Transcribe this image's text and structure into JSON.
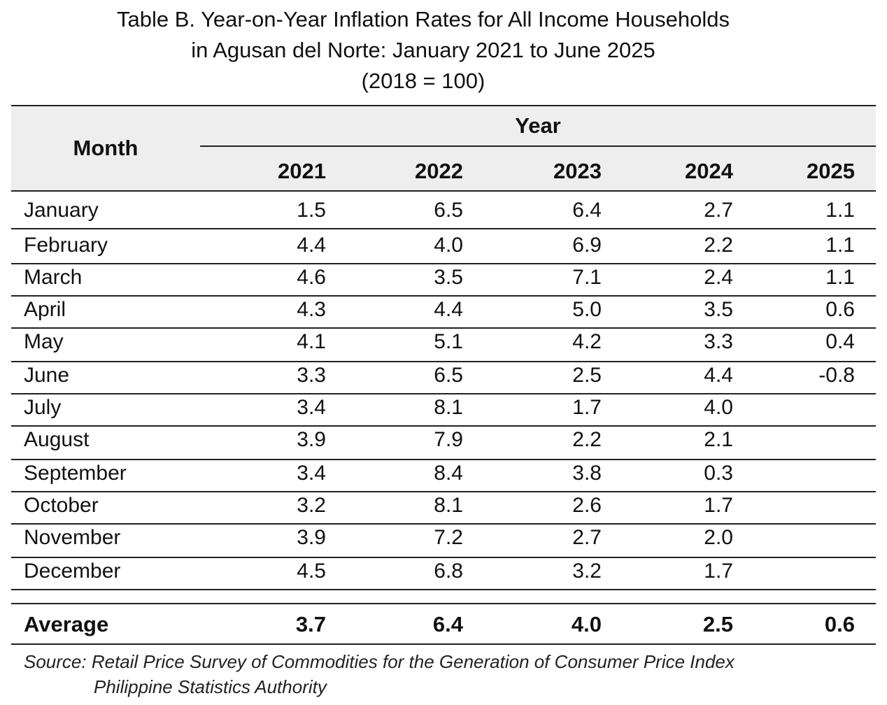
{
  "title": {
    "line1": "Table B. Year-on-Year Inflation Rates for All Income Households",
    "line2": "in Agusan del Norte: January 2021 to June 2025",
    "line3": "(2018 = 100)"
  },
  "header": {
    "month_label": "Month",
    "year_label": "Year",
    "years": [
      "2021",
      "2022",
      "2023",
      "2024",
      "2025"
    ]
  },
  "chart_data": {
    "type": "table",
    "title": "Table B. Year-on-Year Inflation Rates for All Income Households in Agusan del Norte: January 2021 to June 2025 (2018 = 100)",
    "columns": [
      "Month",
      "2021",
      "2022",
      "2023",
      "2024",
      "2025"
    ],
    "rows": [
      {
        "month": "January",
        "values": [
          "1.5",
          "6.5",
          "6.4",
          "2.7",
          "1.1"
        ]
      },
      {
        "month": "February",
        "values": [
          "4.4",
          "4.0",
          "6.9",
          "2.2",
          "1.1"
        ]
      },
      {
        "month": "March",
        "values": [
          "4.6",
          "3.5",
          "7.1",
          "2.4",
          "1.1"
        ]
      },
      {
        "month": "April",
        "values": [
          "4.3",
          "4.4",
          "5.0",
          "3.5",
          "0.6"
        ]
      },
      {
        "month": "May",
        "values": [
          "4.1",
          "5.1",
          "4.2",
          "3.3",
          "0.4"
        ]
      },
      {
        "month": "June",
        "values": [
          "3.3",
          "6.5",
          "2.5",
          "4.4",
          "-0.8"
        ]
      },
      {
        "month": "July",
        "values": [
          "3.4",
          "8.1",
          "1.7",
          "4.0",
          ""
        ]
      },
      {
        "month": "August",
        "values": [
          "3.9",
          "7.9",
          "2.2",
          "2.1",
          ""
        ]
      },
      {
        "month": "September",
        "values": [
          "3.4",
          "8.4",
          "3.8",
          "0.3",
          ""
        ]
      },
      {
        "month": "October",
        "values": [
          "3.2",
          "8.1",
          "2.6",
          "1.7",
          ""
        ]
      },
      {
        "month": "November",
        "values": [
          "3.9",
          "7.2",
          "2.7",
          "2.0",
          ""
        ]
      },
      {
        "month": "December",
        "values": [
          "4.5",
          "6.8",
          "3.2",
          "1.7",
          ""
        ]
      }
    ],
    "average": {
      "label": "Average",
      "values": [
        "3.7",
        "6.4",
        "4.0",
        "2.5",
        "0.6"
      ]
    }
  },
  "source": {
    "line1": "Source: Retail Price Survey of Commodities for the Generation of Consumer Price Index",
    "line2": "Philippine Statistics Authority"
  }
}
